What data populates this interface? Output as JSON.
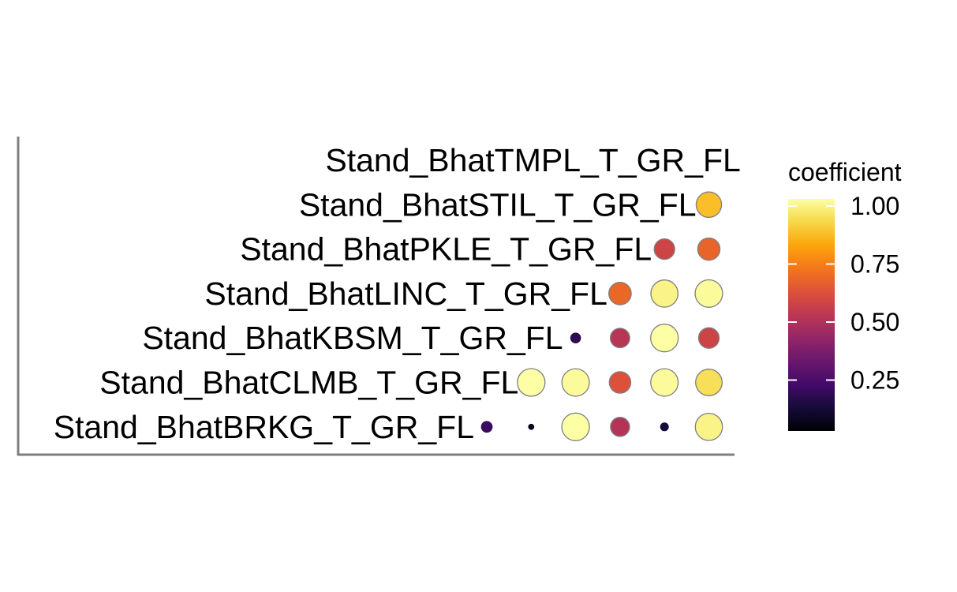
{
  "chart_data": {
    "type": "correlation-dot-matrix",
    "row_labels": [
      "Stand_BhatTMPL_T_GR_FL",
      "Stand_BhatSTIL_T_GR_FL",
      "Stand_BhatPKLE_T_GR_FL",
      "Stand_BhatLINC_T_GR_FL",
      "Stand_BhatKBSM_T_GR_FL",
      "Stand_BhatCLMB_T_GR_FL",
      "Stand_BhatBRKG_T_GR_FL"
    ],
    "column_labels": [
      "Stand_BhatBRKG_T_GR_FL",
      "Stand_BhatCLMB_T_GR_FL",
      "Stand_BhatKBSM_T_GR_FL",
      "Stand_BhatLINC_T_GR_FL",
      "Stand_BhatPKLE_T_GR_FL",
      "Stand_BhatSTIL_T_GR_FL"
    ],
    "points": [
      {
        "row": "Stand_BhatSTIL_T_GR_FL",
        "col": "Stand_BhatSTIL_T_GR_FL",
        "value": 0.85
      },
      {
        "row": "Stand_BhatPKLE_T_GR_FL",
        "col": "Stand_BhatPKLE_T_GR_FL",
        "value": 0.55
      },
      {
        "row": "Stand_BhatPKLE_T_GR_FL",
        "col": "Stand_BhatSTIL_T_GR_FL",
        "value": 0.65
      },
      {
        "row": "Stand_BhatLINC_T_GR_FL",
        "col": "Stand_BhatLINC_T_GR_FL",
        "value": 0.66
      },
      {
        "row": "Stand_BhatLINC_T_GR_FL",
        "col": "Stand_BhatPKLE_T_GR_FL",
        "value": 0.97
      },
      {
        "row": "Stand_BhatLINC_T_GR_FL",
        "col": "Stand_BhatSTIL_T_GR_FL",
        "value": 0.99
      },
      {
        "row": "Stand_BhatKBSM_T_GR_FL",
        "col": "Stand_BhatKBSM_T_GR_FL",
        "value": 0.15
      },
      {
        "row": "Stand_BhatKBSM_T_GR_FL",
        "col": "Stand_BhatLINC_T_GR_FL",
        "value": 0.49
      },
      {
        "row": "Stand_BhatKBSM_T_GR_FL",
        "col": "Stand_BhatPKLE_T_GR_FL",
        "value": 1.0
      },
      {
        "row": "Stand_BhatKBSM_T_GR_FL",
        "col": "Stand_BhatSTIL_T_GR_FL",
        "value": 0.55
      },
      {
        "row": "Stand_BhatCLMB_T_GR_FL",
        "col": "Stand_BhatCLMB_T_GR_FL",
        "value": 1.0
      },
      {
        "row": "Stand_BhatCLMB_T_GR_FL",
        "col": "Stand_BhatKBSM_T_GR_FL",
        "value": 0.99
      },
      {
        "row": "Stand_BhatCLMB_T_GR_FL",
        "col": "Stand_BhatLINC_T_GR_FL",
        "value": 0.6
      },
      {
        "row": "Stand_BhatCLMB_T_GR_FL",
        "col": "Stand_BhatPKLE_T_GR_FL",
        "value": 0.99
      },
      {
        "row": "Stand_BhatCLMB_T_GR_FL",
        "col": "Stand_BhatSTIL_T_GR_FL",
        "value": 0.92
      },
      {
        "row": "Stand_BhatBRKG_T_GR_FL",
        "col": "Stand_BhatBRKG_T_GR_FL",
        "value": 0.18
      },
      {
        "row": "Stand_BhatBRKG_T_GR_FL",
        "col": "Stand_BhatCLMB_T_GR_FL",
        "value": 0.05
      },
      {
        "row": "Stand_BhatBRKG_T_GR_FL",
        "col": "Stand_BhatKBSM_T_GR_FL",
        "value": 1.0
      },
      {
        "row": "Stand_BhatBRKG_T_GR_FL",
        "col": "Stand_BhatLINC_T_GR_FL",
        "value": 0.48
      },
      {
        "row": "Stand_BhatBRKG_T_GR_FL",
        "col": "Stand_BhatPKLE_T_GR_FL",
        "value": 0.1
      },
      {
        "row": "Stand_BhatBRKG_T_GR_FL",
        "col": "Stand_BhatSTIL_T_GR_FL",
        "value": 0.97
      }
    ],
    "legend": {
      "title": "coefficient",
      "ticks": [
        {
          "value": 1.0,
          "label": "1.00"
        },
        {
          "value": 0.75,
          "label": "0.75"
        },
        {
          "value": 0.5,
          "label": "0.50"
        },
        {
          "value": 0.25,
          "label": "0.25"
        }
      ],
      "colormap": "inferno",
      "range": [
        0.0,
        1.0
      ],
      "placement": "right"
    },
    "point_outline_color": "#7f7f7f",
    "axis_line_color": "#7f7f7f"
  }
}
